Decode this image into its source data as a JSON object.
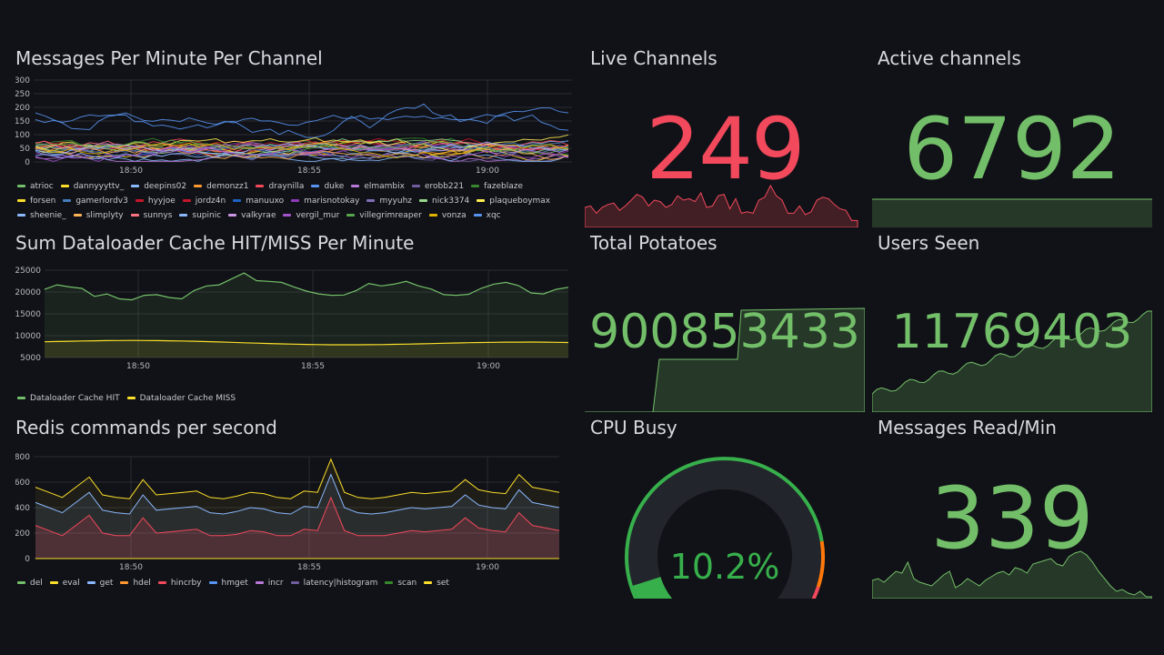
{
  "panels": {
    "messages": {
      "title": "Messages Per Minute Per Channel",
      "y_ticks": [
        "300",
        "250",
        "200",
        "150",
        "100",
        "50",
        "0"
      ],
      "x_ticks": [
        "18:50",
        "18:55",
        "19:00"
      ],
      "legend": [
        {
          "name": "atrioc",
          "color": "#73bf69"
        },
        {
          "name": "dannyyyttv_",
          "color": "#fade2a"
        },
        {
          "name": "deepins02",
          "color": "#8ab8ff"
        },
        {
          "name": "demonzz1",
          "color": "#ff9830"
        },
        {
          "name": "draynilla",
          "color": "#f2495c"
        },
        {
          "name": "duke",
          "color": "#5794f2"
        },
        {
          "name": "elmambix",
          "color": "#b877d9"
        },
        {
          "name": "erobb221",
          "color": "#705da0"
        },
        {
          "name": "fazeblaze",
          "color": "#37872d"
        },
        {
          "name": "forsen",
          "color": "#fade2a"
        },
        {
          "name": "gamerlordv3",
          "color": "#447ebc"
        },
        {
          "name": "hyyjoe",
          "color": "#c4162a"
        },
        {
          "name": "jordz4n",
          "color": "#c4162a"
        },
        {
          "name": "manuuxo",
          "color": "#1f60c4"
        },
        {
          "name": "marisnotokay",
          "color": "#8f3bb8"
        },
        {
          "name": "myyuhz",
          "color": "#806eb7"
        },
        {
          "name": "nick3374",
          "color": "#96d98d"
        },
        {
          "name": "plaqueboymax",
          "color": "#ffee52"
        },
        {
          "name": "sheenie_",
          "color": "#8ab8ff"
        },
        {
          "name": "slimplyty",
          "color": "#ffb357"
        },
        {
          "name": "sunnys",
          "color": "#ff7383"
        },
        {
          "name": "supinic",
          "color": "#8ab8ff"
        },
        {
          "name": "valkyrae",
          "color": "#ca95e5"
        },
        {
          "name": "vergil_mur",
          "color": "#a352cc"
        },
        {
          "name": "villegrimreaper",
          "color": "#56a64b"
        },
        {
          "name": "vonza",
          "color": "#e0b400"
        },
        {
          "name": "xqc",
          "color": "#5794f2"
        }
      ]
    },
    "cache": {
      "title": "Sum Dataloader Cache HIT/MISS Per Minute",
      "y_ticks": [
        "25000",
        "20000",
        "15000",
        "10000",
        "5000"
      ],
      "x_ticks": [
        "18:50",
        "18:55",
        "19:00"
      ],
      "legend": [
        {
          "name": "Dataloader Cache HIT",
          "color": "#73bf69"
        },
        {
          "name": "Dataloader Cache MISS",
          "color": "#fade2a"
        }
      ]
    },
    "redis": {
      "title": "Redis commands per second",
      "y_ticks": [
        "800",
        "600",
        "400",
        "200",
        "0"
      ],
      "x_ticks": [
        "18:50",
        "18:55",
        "19:00"
      ],
      "legend": [
        {
          "name": "del",
          "color": "#73bf69"
        },
        {
          "name": "eval",
          "color": "#fade2a"
        },
        {
          "name": "get",
          "color": "#8ab8ff"
        },
        {
          "name": "hdel",
          "color": "#ff9830"
        },
        {
          "name": "hincrby",
          "color": "#f2495c"
        },
        {
          "name": "hmget",
          "color": "#5794f2"
        },
        {
          "name": "incr",
          "color": "#b877d9"
        },
        {
          "name": "latency|histogram",
          "color": "#705da0"
        },
        {
          "name": "scan",
          "color": "#37872d"
        },
        {
          "name": "set",
          "color": "#fade2a"
        }
      ]
    },
    "live_channels": {
      "title": "Live Channels",
      "value": "249",
      "color": "#f2495c"
    },
    "active_channels": {
      "title": "Active channels",
      "value": "6792",
      "color": "#73bf69"
    },
    "total_potatoes": {
      "title": "Total Potatoes",
      "value": "900853433",
      "color": "#73bf69"
    },
    "users_seen": {
      "title": "Users Seen",
      "value": "11769403",
      "color": "#73bf69"
    },
    "cpu_busy": {
      "title": "CPU Busy",
      "value": "10.2%",
      "percent": 10.2,
      "color": "#37b04c"
    },
    "messages_read": {
      "title": "Messages Read/Min",
      "value": "339",
      "color": "#73bf69"
    }
  }
}
